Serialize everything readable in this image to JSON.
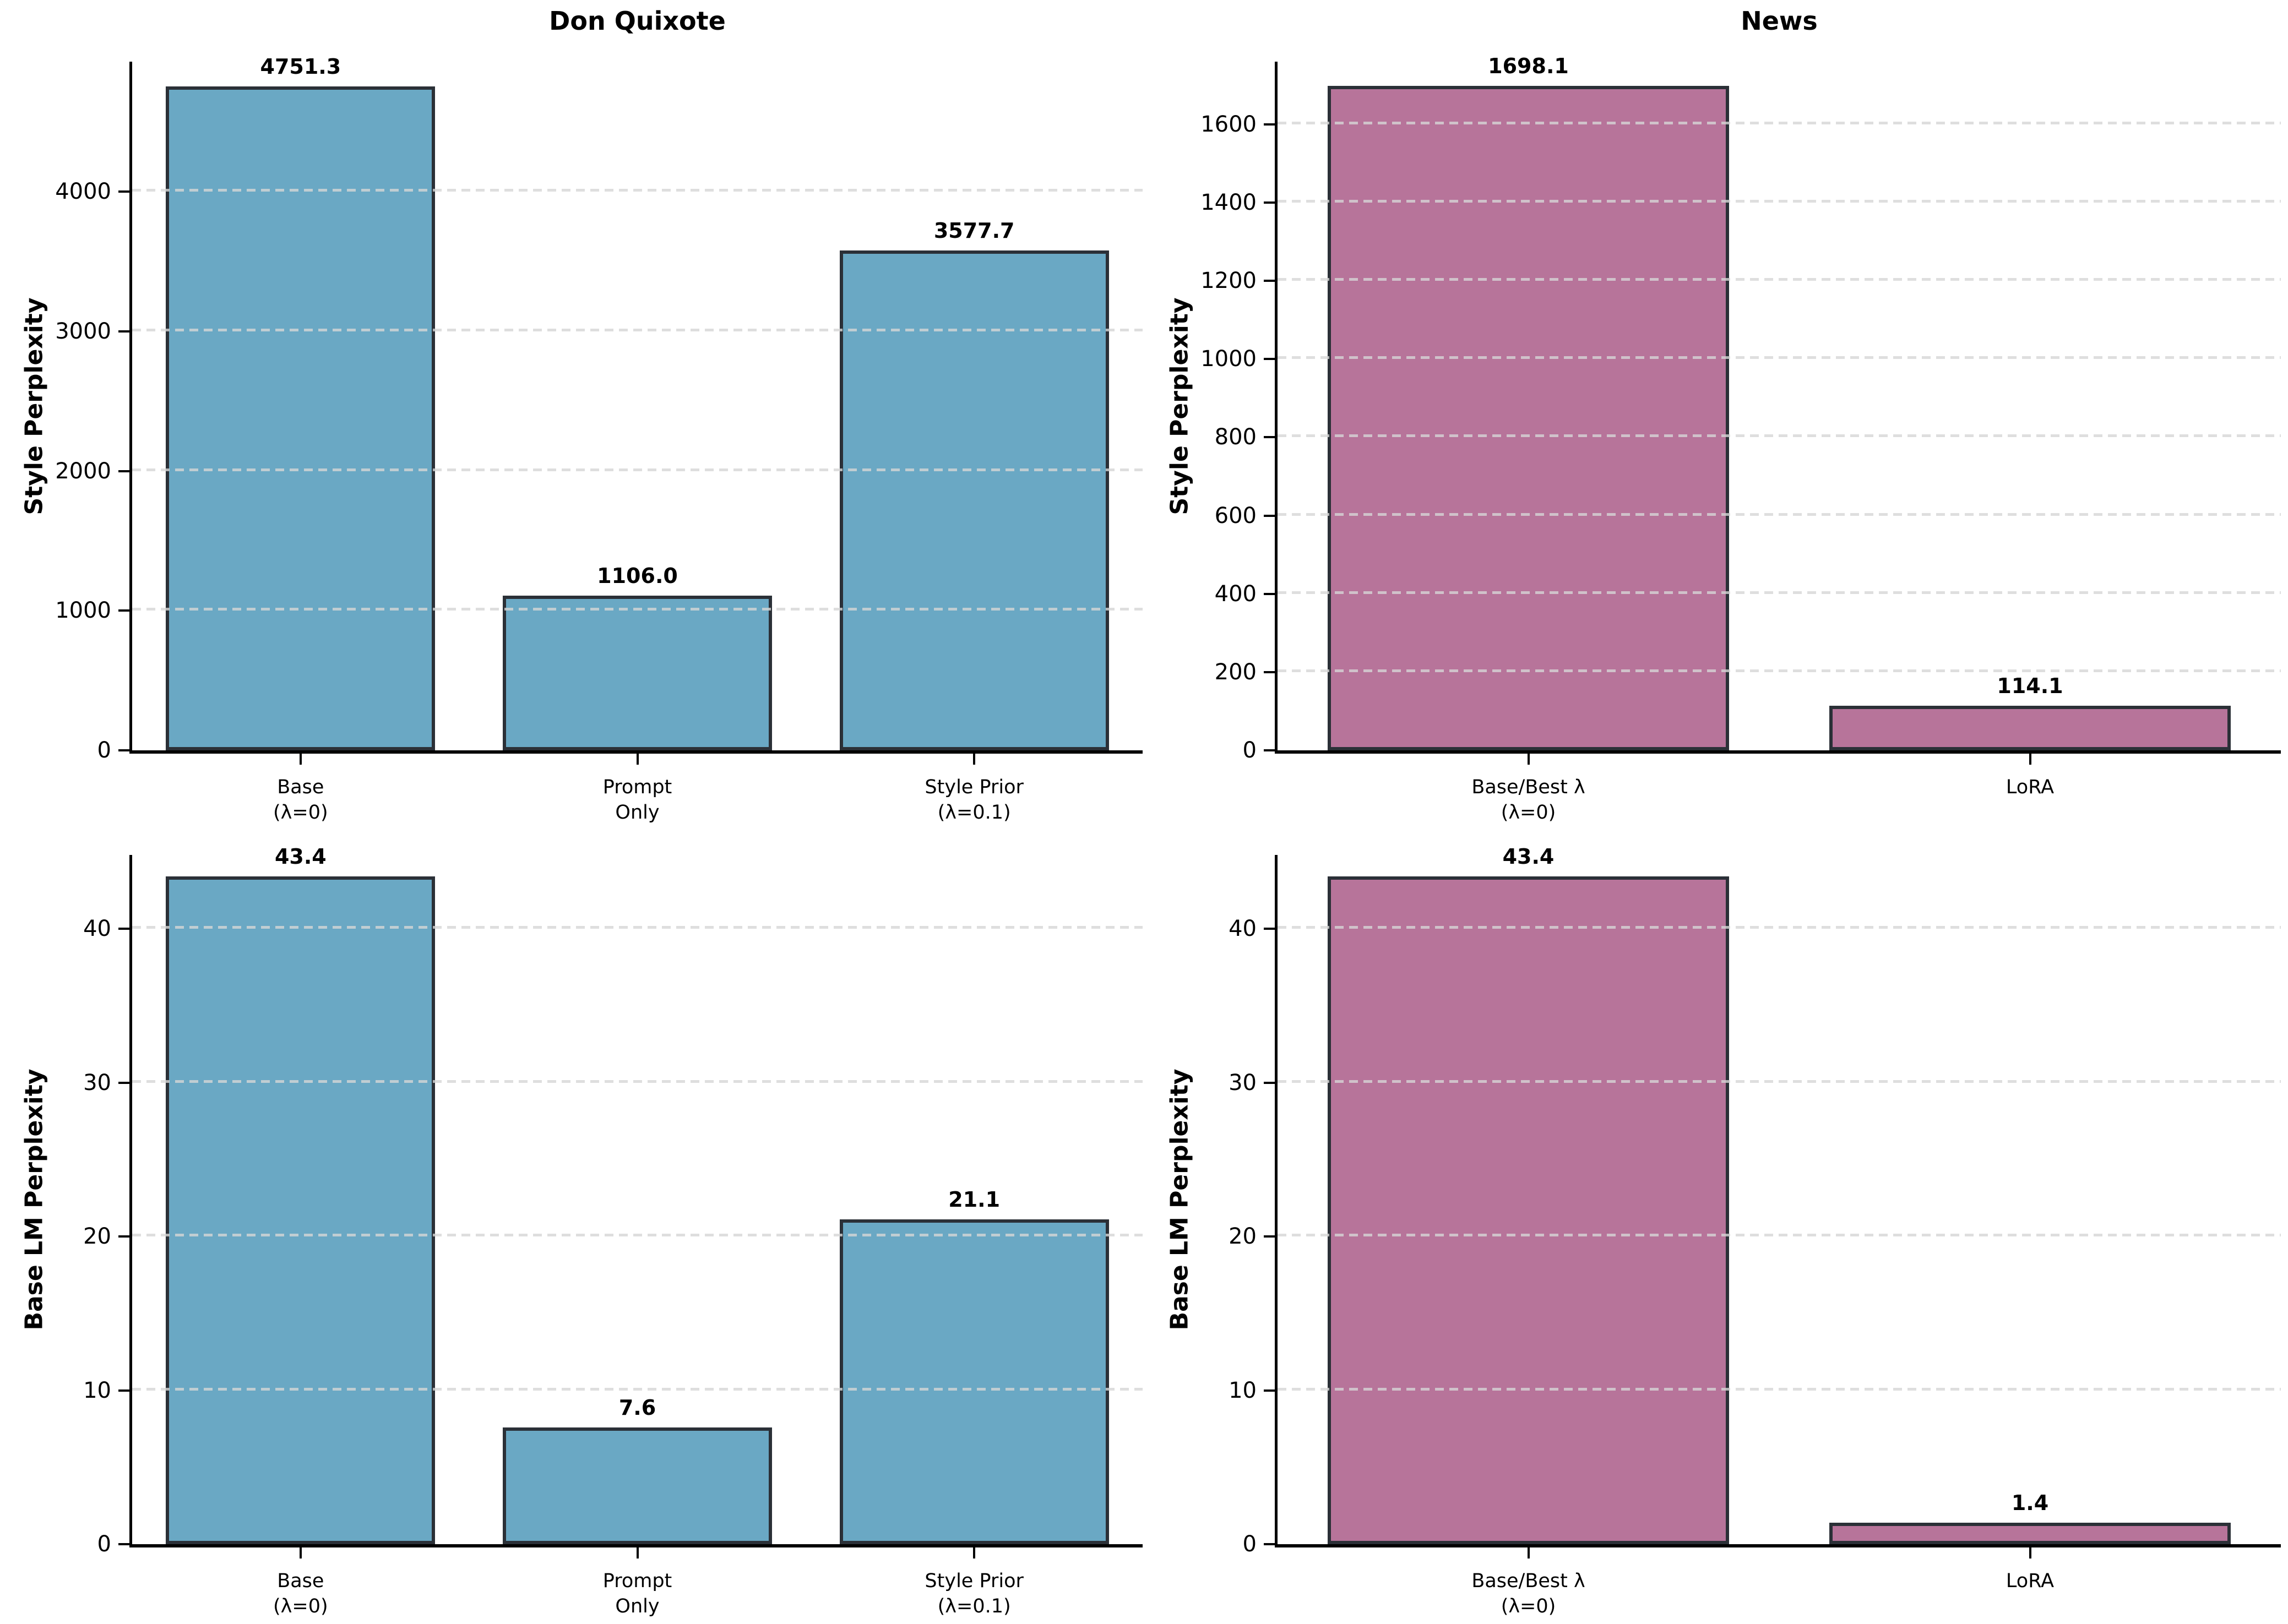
{
  "figure": {
    "background": "#ffffff",
    "grid_color": "#d6d6d6",
    "spine_color": "#000000",
    "bar_edge_color": "#2b3037"
  },
  "chart_data": [
    {
      "type": "bar",
      "title": "Don Quixote",
      "ylabel": "Style Perplexity",
      "categories": [
        "Base\n(λ=0)",
        "Prompt\nOnly",
        "Style Prior\n(λ=0.1)"
      ],
      "values": [
        4751.3,
        1106.0,
        3577.7
      ],
      "value_labels": [
        "4751.3",
        "1106.0",
        "3577.7"
      ],
      "bar_color": "#6aa8c4",
      "ylim": [
        0,
        4930
      ],
      "yticks": [
        0,
        1000,
        2000,
        3000,
        4000
      ],
      "grid": "horizontal-dashed",
      "legend": "none"
    },
    {
      "type": "bar",
      "title": "News",
      "ylabel": "Style Perplexity",
      "categories": [
        "Base/Best λ\n(λ=0)",
        "LoRA"
      ],
      "values": [
        1698.1,
        114.1
      ],
      "value_labels": [
        "1698.1",
        "114.1"
      ],
      "bar_color": "#b7749a",
      "ylim": [
        0,
        1760
      ],
      "yticks": [
        0,
        200,
        400,
        600,
        800,
        1000,
        1200,
        1400,
        1600
      ],
      "grid": "horizontal-dashed",
      "legend": "none"
    },
    {
      "type": "bar",
      "title": null,
      "ylabel": "Base LM Perplexity",
      "categories": [
        "Base\n(λ=0)",
        "Prompt\nOnly",
        "Style Prior\n(λ=0.1)"
      ],
      "values": [
        43.4,
        7.6,
        21.1
      ],
      "value_labels": [
        "43.4",
        "7.6",
        "21.1"
      ],
      "bar_color": "#6aa8c4",
      "ylim": [
        0,
        44.8
      ],
      "yticks": [
        0,
        10,
        20,
        30,
        40
      ],
      "grid": "horizontal-dashed",
      "legend": "none"
    },
    {
      "type": "bar",
      "title": null,
      "ylabel": "Base LM Perplexity",
      "categories": [
        "Base/Best λ\n(λ=0)",
        "LoRA"
      ],
      "values": [
        43.4,
        1.4
      ],
      "value_labels": [
        "43.4",
        "1.4"
      ],
      "bar_color": "#b7749a",
      "ylim": [
        0,
        44.8
      ],
      "yticks": [
        0,
        10,
        20,
        30,
        40
      ],
      "grid": "horizontal-dashed",
      "legend": "none"
    }
  ]
}
